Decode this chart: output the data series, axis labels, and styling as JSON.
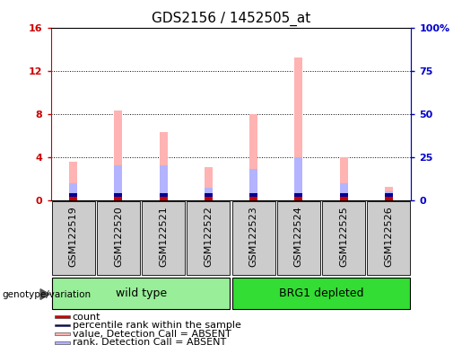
{
  "title": "GDS2156 / 1452505_at",
  "samples": [
    "GSM122519",
    "GSM122520",
    "GSM122521",
    "GSM122522",
    "GSM122523",
    "GSM122524",
    "GSM122525",
    "GSM122526"
  ],
  "pink_bar_values": [
    3.6,
    8.3,
    6.3,
    3.1,
    8.0,
    13.2,
    4.0,
    1.2
  ],
  "blue_bar_values_right": [
    10.0,
    20.0,
    20.0,
    7.0,
    18.0,
    25.0,
    10.0,
    5.0
  ],
  "red_bar_values": [
    0.3,
    0.3,
    0.3,
    0.3,
    0.3,
    0.3,
    0.3,
    0.3
  ],
  "dark_blue_bar_values_right": [
    2.0,
    2.0,
    2.0,
    2.0,
    2.0,
    2.0,
    2.0,
    2.0
  ],
  "ylim_left": [
    0,
    16
  ],
  "ylim_right": [
    0,
    100
  ],
  "yticks_left": [
    0,
    4,
    8,
    12,
    16
  ],
  "yticks_right": [
    0,
    25,
    50,
    75,
    100
  ],
  "yticklabels_left": [
    "0",
    "4",
    "8",
    "12",
    "16"
  ],
  "yticklabels_right": [
    "0",
    "25",
    "50",
    "75",
    "100%"
  ],
  "legend_items": [
    {
      "label": "count",
      "color": "#cc0000"
    },
    {
      "label": "percentile rank within the sample",
      "color": "#000099"
    },
    {
      "label": "value, Detection Call = ABSENT",
      "color": "#ffb3b3"
    },
    {
      "label": "rank, Detection Call = ABSENT",
      "color": "#b3b3ff"
    }
  ],
  "bar_width": 0.18,
  "col_bg_color": "#cccccc",
  "plot_bg_color": "#ffffff",
  "left_yaxis_color": "#cc0000",
  "right_yaxis_color": "#0000cc",
  "title_fontsize": 11,
  "tick_fontsize": 8,
  "label_fontsize": 8,
  "grid_yticks": [
    4,
    8,
    12
  ],
  "wt_color": "#99ee99",
  "brg_color": "#33dd33",
  "wt_label": "wild type",
  "brg_label": "BRG1 depleted",
  "genotype_label": "genotype/variation"
}
